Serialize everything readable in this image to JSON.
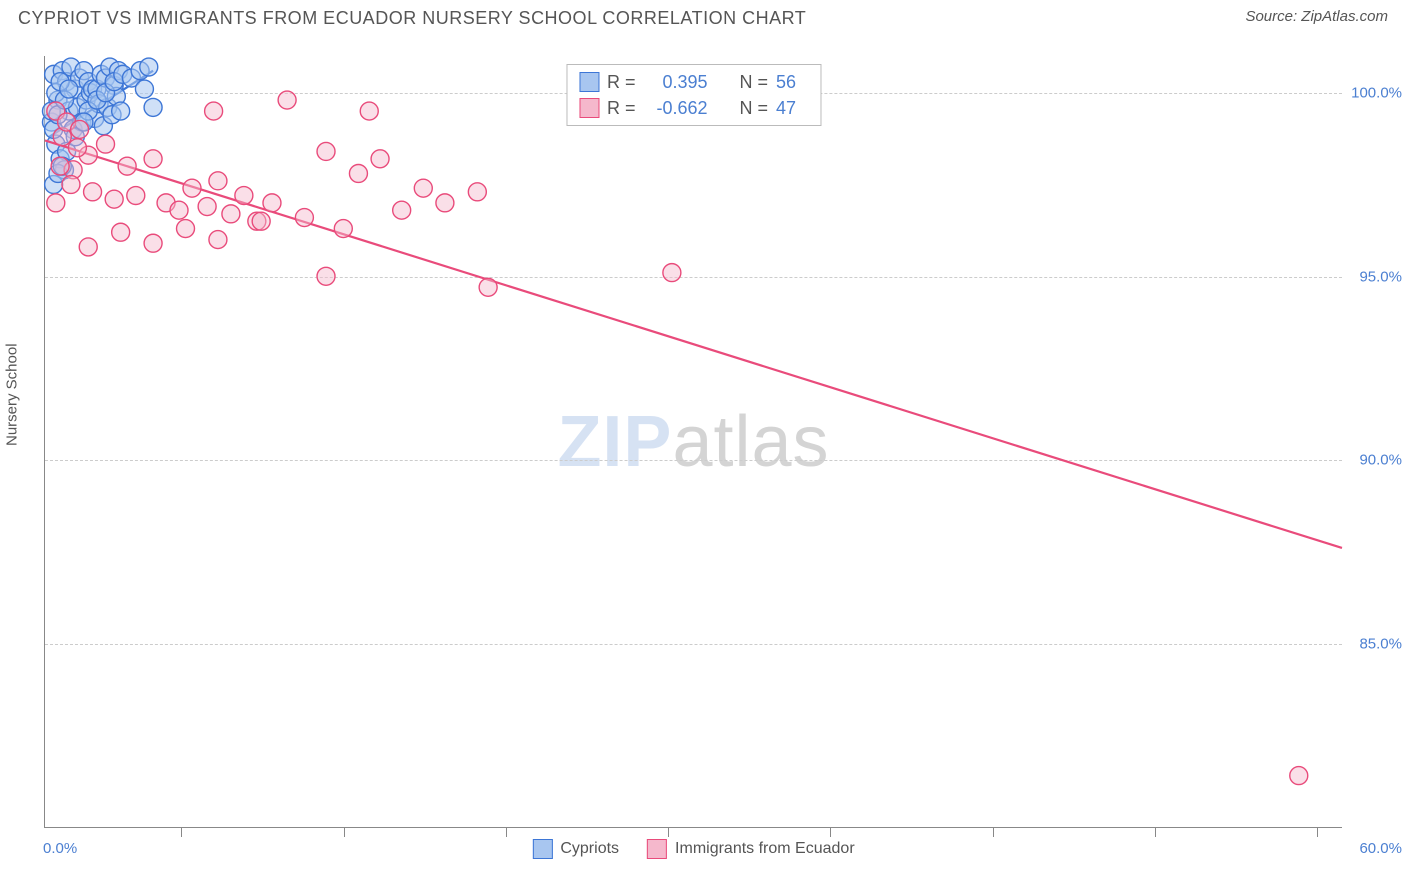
{
  "title": "CYPRIOT VS IMMIGRANTS FROM ECUADOR NURSERY SCHOOL CORRELATION CHART",
  "source": "Source: ZipAtlas.com",
  "y_axis_title": "Nursery School",
  "watermark": {
    "bold": "ZIP",
    "thin": "atlas"
  },
  "chart": {
    "type": "scatter",
    "background_color": "#ffffff",
    "grid_color": "#cccccc",
    "axis_color": "#888888",
    "label_color": "#4b7fd1",
    "xlim": [
      0,
      60
    ],
    "ylim": [
      80,
      101
    ],
    "ytick_step": 5,
    "ytick_labels": [
      "85.0%",
      "90.0%",
      "95.0%",
      "100.0%"
    ],
    "ytick_values": [
      85,
      90,
      95,
      100
    ],
    "xtick_positions_pct": [
      10.5,
      23,
      35.5,
      48,
      60.5,
      73,
      85.5,
      98
    ],
    "x_left_label": "0.0%",
    "x_right_label": "60.0%",
    "label_fontsize": 15,
    "marker_radius": 9,
    "marker_stroke_width": 1.4,
    "trend_line_width": 2.2,
    "series": [
      {
        "name": "Cypriots",
        "fill": "#a8c6f0",
        "stroke": "#3d76d6",
        "fill_opacity": 0.55,
        "R": "0.395",
        "N": "56",
        "trend": {
          "x1": 0.2,
          "y1": 98.8,
          "x2": 5.0,
          "y2": 100.6
        },
        "points": [
          [
            0.3,
            99.2
          ],
          [
            0.4,
            100.5
          ],
          [
            0.6,
            99.8
          ],
          [
            0.8,
            100.6
          ],
          [
            1.0,
            100.3
          ],
          [
            1.1,
            99.5
          ],
          [
            1.2,
            100.7
          ],
          [
            1.3,
            99.0
          ],
          [
            1.4,
            100.1
          ],
          [
            1.5,
            99.6
          ],
          [
            1.6,
            100.4
          ],
          [
            1.7,
            99.2
          ],
          [
            1.8,
            100.6
          ],
          [
            1.9,
            99.8
          ],
          [
            2.0,
            100.3
          ],
          [
            2.1,
            100.0
          ],
          [
            2.2,
            100.1
          ],
          [
            2.3,
            99.3
          ],
          [
            2.4,
            100.1
          ],
          [
            2.5,
            99.7
          ],
          [
            2.6,
            100.5
          ],
          [
            2.7,
            99.1
          ],
          [
            2.8,
            100.4
          ],
          [
            2.9,
            99.6
          ],
          [
            3.0,
            100.7
          ],
          [
            3.1,
            99.4
          ],
          [
            3.2,
            100.2
          ],
          [
            3.3,
            99.9
          ],
          [
            3.4,
            100.6
          ],
          [
            3.5,
            99.5
          ],
          [
            0.5,
            98.6
          ],
          [
            0.7,
            98.2
          ],
          [
            0.9,
            97.9
          ],
          [
            1.0,
            98.4
          ],
          [
            0.4,
            97.5
          ],
          [
            0.6,
            97.8
          ],
          [
            0.8,
            98.0
          ],
          [
            0.3,
            99.5
          ],
          [
            0.5,
            100.0
          ],
          [
            0.7,
            100.3
          ],
          [
            2.0,
            99.5
          ],
          [
            2.4,
            99.8
          ],
          [
            2.8,
            100.0
          ],
          [
            3.2,
            100.3
          ],
          [
            3.6,
            100.5
          ],
          [
            4.0,
            100.4
          ],
          [
            4.4,
            100.6
          ],
          [
            4.8,
            100.7
          ],
          [
            5.0,
            99.6
          ],
          [
            4.6,
            100.1
          ],
          [
            1.4,
            98.8
          ],
          [
            1.8,
            99.2
          ],
          [
            0.4,
            99.0
          ],
          [
            0.6,
            99.4
          ],
          [
            0.9,
            99.8
          ],
          [
            1.1,
            100.1
          ]
        ]
      },
      {
        "name": "Immigrants from Ecuador",
        "fill": "#f5b8cc",
        "stroke": "#e94b7b",
        "fill_opacity": 0.45,
        "R": "-0.662",
        "N": "47",
        "trend": {
          "x1": 0.0,
          "y1": 98.7,
          "x2": 60.0,
          "y2": 87.6
        },
        "points": [
          [
            0.5,
            99.5
          ],
          [
            0.8,
            98.8
          ],
          [
            1.0,
            99.2
          ],
          [
            1.3,
            97.9
          ],
          [
            1.6,
            99.0
          ],
          [
            2.0,
            98.3
          ],
          [
            0.7,
            98.0
          ],
          [
            1.2,
            97.5
          ],
          [
            1.5,
            98.5
          ],
          [
            2.2,
            97.3
          ],
          [
            2.8,
            98.6
          ],
          [
            3.2,
            97.1
          ],
          [
            3.8,
            98.0
          ],
          [
            4.2,
            97.2
          ],
          [
            5.0,
            98.2
          ],
          [
            5.6,
            97.0
          ],
          [
            6.2,
            96.8
          ],
          [
            6.8,
            97.4
          ],
          [
            7.5,
            96.9
          ],
          [
            8.0,
            97.6
          ],
          [
            8.6,
            96.7
          ],
          [
            9.2,
            97.2
          ],
          [
            9.8,
            96.5
          ],
          [
            10.5,
            97.0
          ],
          [
            11.2,
            99.8
          ],
          [
            12.0,
            96.6
          ],
          [
            13.0,
            98.4
          ],
          [
            13.8,
            96.3
          ],
          [
            14.5,
            97.8
          ],
          [
            15.5,
            98.2
          ],
          [
            16.5,
            96.8
          ],
          [
            17.5,
            97.4
          ],
          [
            18.5,
            97.0
          ],
          [
            2.0,
            95.8
          ],
          [
            3.5,
            96.2
          ],
          [
            5.0,
            95.9
          ],
          [
            6.5,
            96.3
          ],
          [
            8.0,
            96.0
          ],
          [
            10.0,
            96.5
          ],
          [
            7.8,
            99.5
          ],
          [
            15.0,
            99.5
          ],
          [
            20.0,
            97.3
          ],
          [
            13.0,
            95.0
          ],
          [
            20.5,
            94.7
          ],
          [
            29.0,
            95.1
          ],
          [
            58.0,
            81.4
          ],
          [
            0.5,
            97.0
          ]
        ]
      }
    ]
  },
  "stats_legend": {
    "R_prefix": "R = ",
    "N_prefix": "N = "
  }
}
